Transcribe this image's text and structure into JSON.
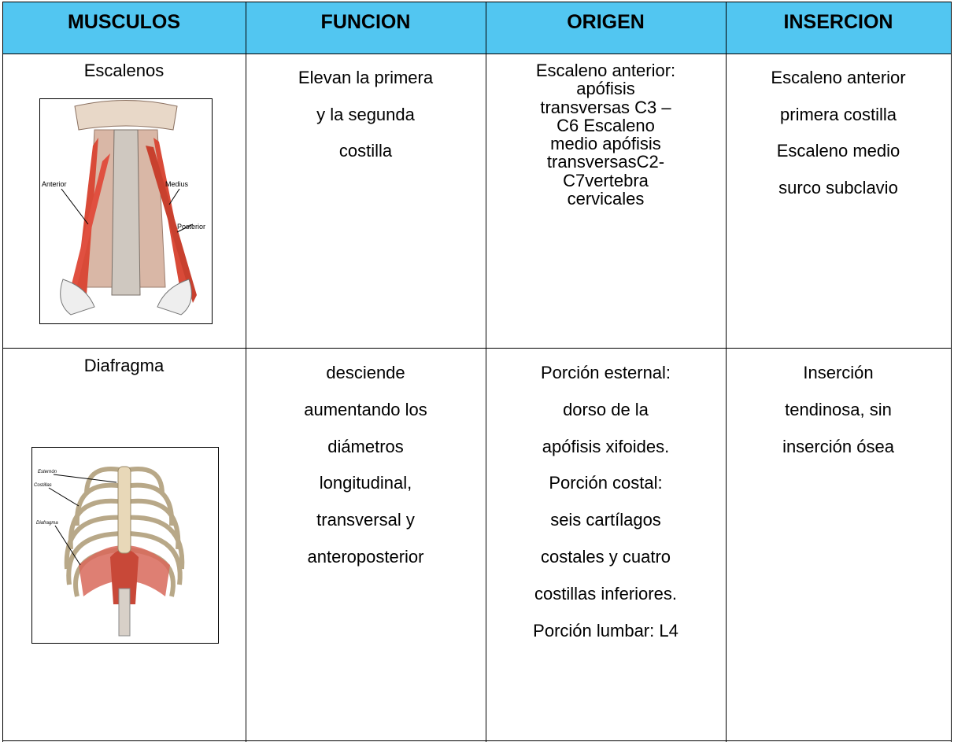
{
  "header": {
    "columns": [
      "MUSCULOS",
      "FUNCION",
      "ORIGEN",
      "INSERCION"
    ]
  },
  "rows": [
    {
      "muscle": "Escalenos",
      "funcion": [
        "Elevan la primera",
        "y la segunda",
        "costilla"
      ],
      "origen": [
        "Escaleno anterior:",
        "apófisis",
        "transversas C3 –",
        "C6 Escaleno",
        "medio apófisis",
        "transversasC2-",
        "C7vertebra",
        "cervicales"
      ],
      "insercion": [
        "Escaleno anterior",
        "primera costilla",
        "Escaleno medio",
        "surco subclavio"
      ],
      "image_labels": [
        "Anterior",
        "Medius",
        "Posterior"
      ]
    },
    {
      "muscle": "Diafragma",
      "funcion": [
        "desciende",
        "aumentando los",
        "diámetros",
        "longitudinal,",
        "transversal y",
        "anteroposterior"
      ],
      "origen": [
        "Porción esternal:",
        "dorso de la",
        "apófisis xifoides.",
        "Porción costal:",
        "seis cartílagos",
        "costales y cuatro",
        "costillas inferiores.",
        "Porción lumbar: L4"
      ],
      "insercion": [
        "Inserción",
        "tendinosa, sin",
        "inserción ósea"
      ],
      "image_labels": [
        "Esternón",
        "Costillas",
        "Diafragma"
      ]
    }
  ]
}
